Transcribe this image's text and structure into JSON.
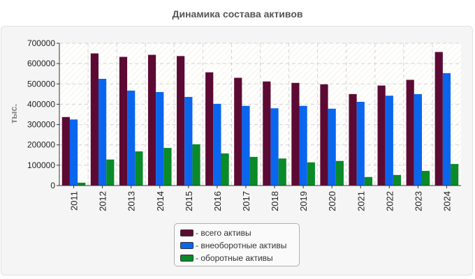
{
  "chart_data": {
    "type": "bar",
    "title": "Динамика состава активов",
    "ylabel": "тыс.",
    "xlabel": "",
    "ylim": [
      0,
      700000
    ],
    "yticks": [
      0,
      100000,
      200000,
      300000,
      400000,
      500000,
      600000,
      700000
    ],
    "grid": true,
    "legend_position": "bottom",
    "categories": [
      "2011",
      "2012",
      "2013",
      "2014",
      "2015",
      "2016",
      "2017",
      "2018",
      "2019",
      "2020",
      "2021",
      "2022",
      "2023",
      "2024"
    ],
    "series": [
      {
        "name": "всего активы",
        "color": "#5c0a34",
        "values": [
          337000,
          650000,
          633000,
          643000,
          637000,
          557000,
          530000,
          512000,
          505000,
          498000,
          450000,
          492000,
          520000,
          657000
        ]
      },
      {
        "name": "внеоборотные активы",
        "color": "#0a66ee",
        "values": [
          325000,
          525000,
          467000,
          460000,
          436000,
          402000,
          392000,
          380000,
          392000,
          378000,
          412000,
          442000,
          450000,
          553000
        ]
      },
      {
        "name": "оборотные активы",
        "color": "#0a8a28",
        "values": [
          14000,
          128000,
          168000,
          185000,
          203000,
          158000,
          141000,
          133000,
          114000,
          121000,
          42000,
          52000,
          72000,
          106000
        ]
      }
    ]
  }
}
